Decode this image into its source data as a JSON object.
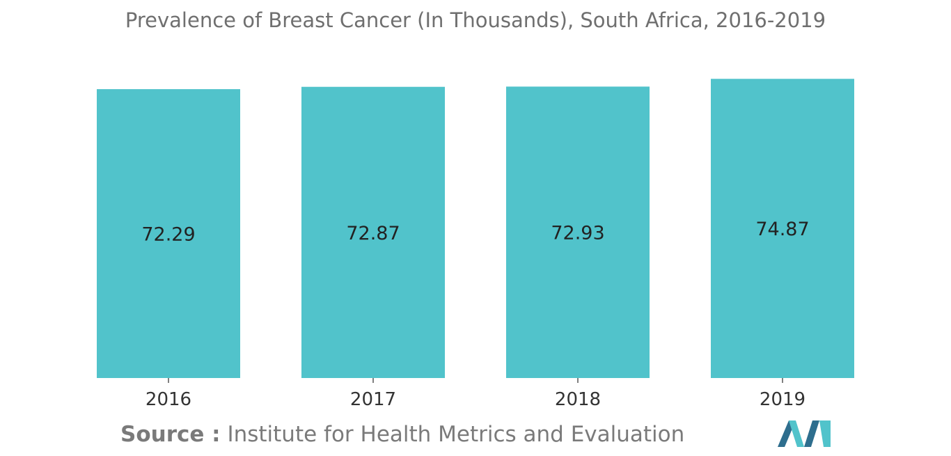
{
  "chart_data": {
    "type": "bar",
    "title": "Prevalence of Breast Cancer (In Thousands), South Africa, 2016-2019",
    "categories": [
      "2016",
      "2017",
      "2018",
      "2019"
    ],
    "values": [
      72.29,
      72.87,
      72.93,
      74.87
    ],
    "data_labels": [
      "72.29",
      "72.87",
      "72.93",
      "74.87"
    ],
    "xlabel": "",
    "ylabel": "",
    "grid": false,
    "legend": "none",
    "bar_color": "#51C3CB"
  },
  "source": {
    "label": "Source :",
    "text": "Institute for Health Metrics and Evaluation"
  },
  "logo": {
    "icon": "mordor-intelligence-logo",
    "colors": [
      "#2E6E8E",
      "#51C3CB"
    ]
  }
}
